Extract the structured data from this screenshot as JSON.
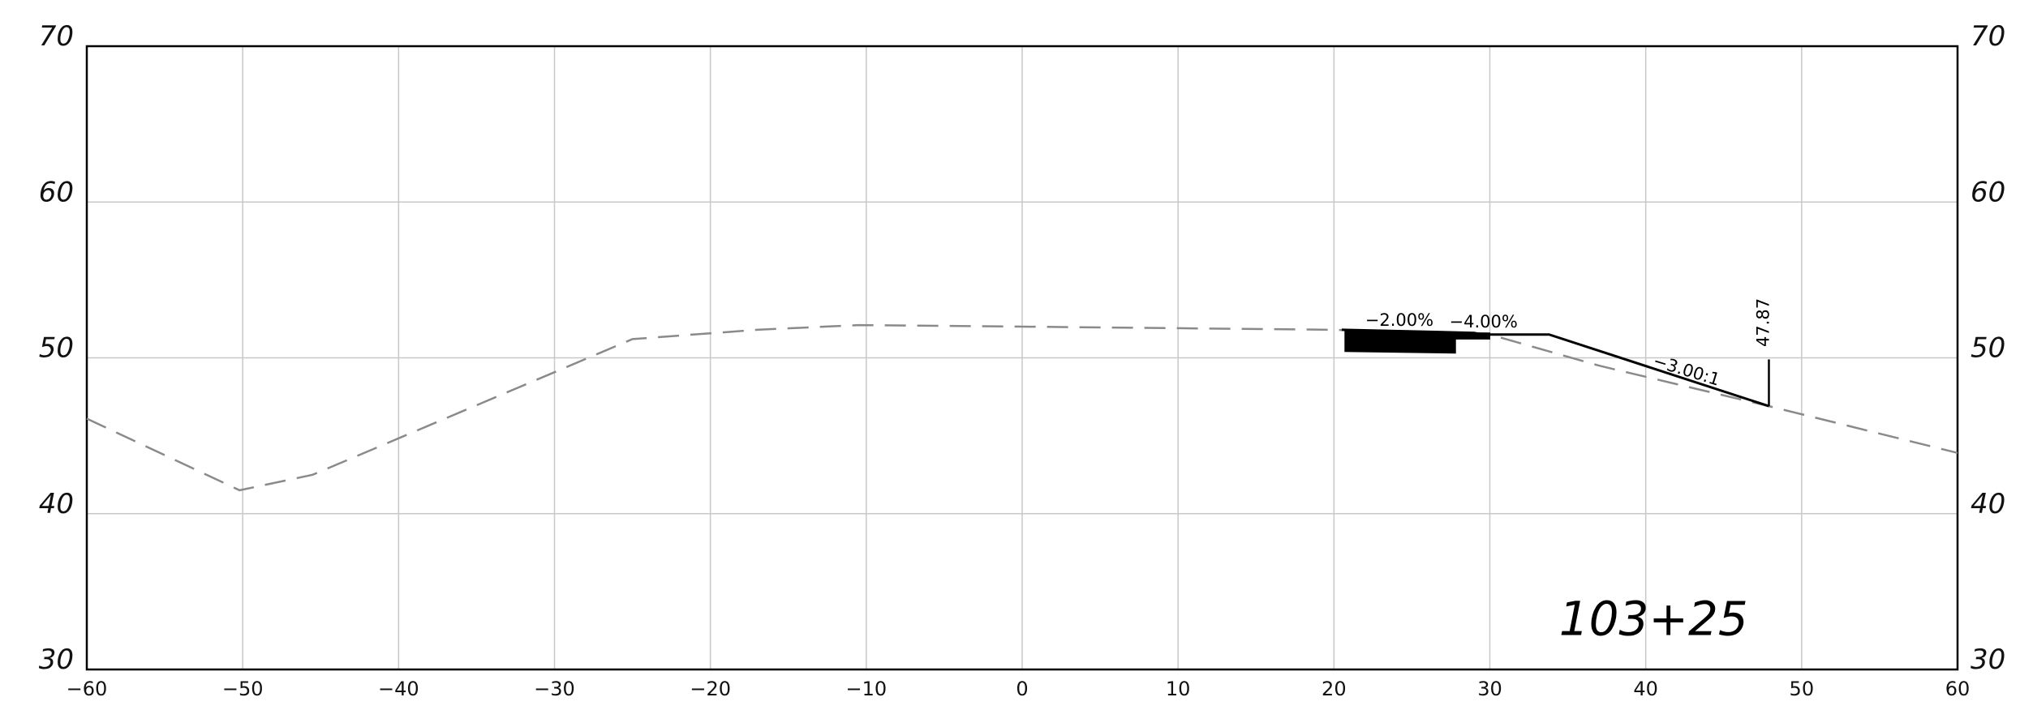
{
  "chart_data": {
    "type": "line",
    "title": "",
    "xlabel": "",
    "ylabel": "",
    "xlim": [
      -60,
      60
    ],
    "ylim": [
      30,
      70
    ],
    "x_ticks": [
      "−60",
      "−50",
      "−40",
      "−30",
      "−20",
      "−10",
      "0",
      "10",
      "20",
      "30",
      "40",
      "50",
      "60"
    ],
    "x_tick_values": [
      -60,
      -50,
      -40,
      -30,
      -20,
      -10,
      0,
      10,
      20,
      30,
      40,
      50,
      60
    ],
    "y_ticks_left": [
      "30",
      "40",
      "50",
      "60",
      "70"
    ],
    "y_ticks_right": [
      "30",
      "40",
      "50",
      "60",
      "70"
    ],
    "y_tick_values": [
      30,
      40,
      50,
      60,
      70
    ],
    "grid": true,
    "series": [
      {
        "style": "dashed-gray",
        "x": [
          -60,
          -50.2,
          -45.5,
          -25,
          -17,
          -10.5,
          0,
          20,
          30,
          37,
          47.9,
          60
        ],
        "y": [
          46.1,
          41.5,
          42.5,
          51.2,
          51.8,
          52.1,
          52.0,
          51.8,
          51.5,
          49.5,
          46.9,
          43.9
        ]
      },
      {
        "style": "solid-black",
        "x": [
          20.5,
          29.0,
          29.5,
          33.8,
          47.9
        ],
        "y": [
          51.8,
          51.6,
          51.5,
          51.5,
          46.9
        ]
      },
      {
        "style": "filled-black",
        "x": [
          20.7,
          30.0,
          30.0,
          27.8,
          27.8,
          20.7
        ],
        "y": [
          51.7,
          51.6,
          51.2,
          51.2,
          50.3,
          50.4
        ]
      }
    ],
    "annotations": [
      {
        "text": "−2.00%",
        "x": 22.0,
        "y": 52.05,
        "angle": 0
      },
      {
        "text": "−4.00%",
        "x": 27.4,
        "y": 51.95,
        "angle": 0
      },
      {
        "text": "−3.00:1",
        "x": 40.4,
        "y": 49.5,
        "angle": 17
      },
      {
        "text": "47.87",
        "x": 47.9,
        "y": 50.7,
        "angle": -90
      }
    ],
    "offset_marker": {
      "x": 47.9,
      "y_from": 46.9,
      "y_to": 49.9
    },
    "station_label": "103+25"
  }
}
